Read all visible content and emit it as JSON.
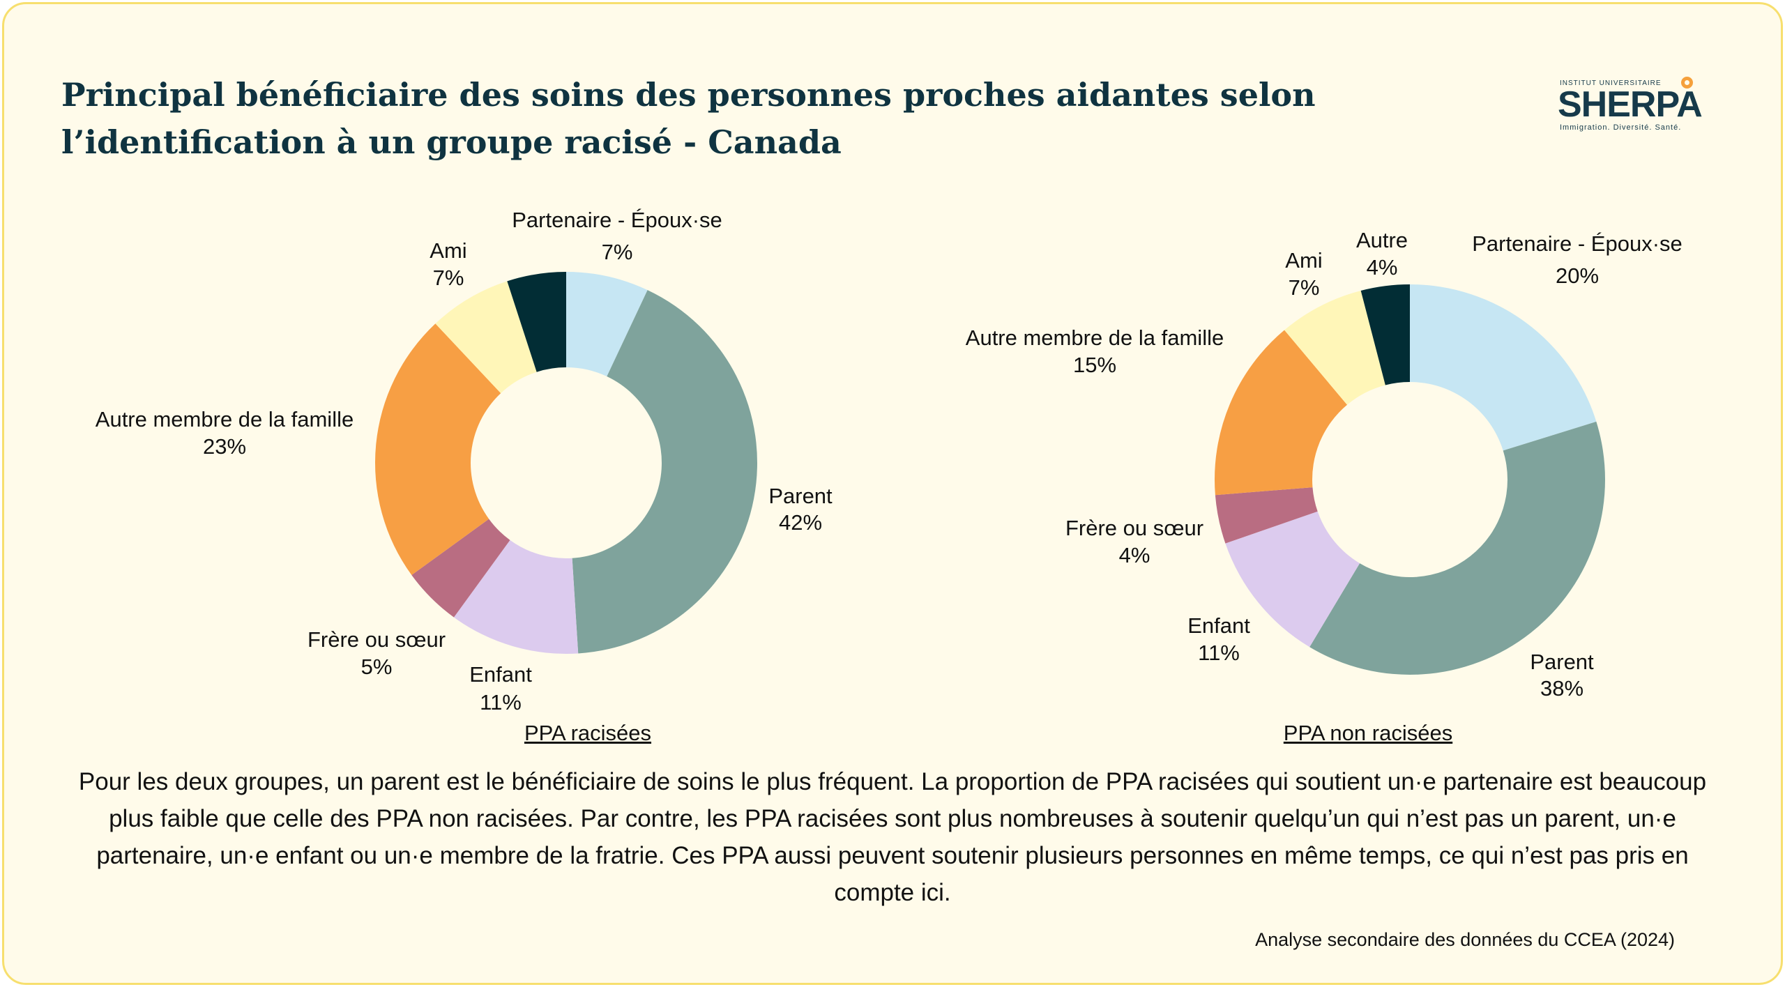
{
  "title": "Principal bénéficiaire des soins des personnes proches aidantes selon l’identification à un groupe racisé - Canada",
  "logo": {
    "small_text": "INSTITUT UNIVERSITAIRE",
    "brand": "SHERPA",
    "tagline": "Immigration. Diversité. Santé."
  },
  "colors": {
    "partenaire": "#c6e6f3",
    "parent": "#7fa39c",
    "enfant": "#dccbee",
    "frere": "#b96d82",
    "famille": "#f79f44",
    "ami": "#fff6b8",
    "autre": "#022d35"
  },
  "chart_data": [
    {
      "type": "pie",
      "caption": "PPA racisées",
      "slices": [
        {
          "label": "Partenaire - Époux·se",
          "value": 7,
          "value_text": "7%",
          "color": "#c6e6f3"
        },
        {
          "label": "Parent",
          "value": 42,
          "value_text": "42%",
          "color": "#7fa39c"
        },
        {
          "label": "Enfant",
          "value": 11,
          "value_text": "11%",
          "color": "#dccbee"
        },
        {
          "label": "Frère ou sœur",
          "value": 5,
          "value_text": "5%",
          "color": "#b96d82"
        },
        {
          "label": "Autre membre de la famille",
          "value": 23,
          "value_text": "23%",
          "color": "#f79f44"
        },
        {
          "label": "Ami",
          "value": 7,
          "value_text": "7%",
          "color": "#fff6b8"
        },
        {
          "label": "",
          "value": 5,
          "value_text": "",
          "color": "#022d35"
        }
      ]
    },
    {
      "type": "pie",
      "caption": "PPA non racisées",
      "slices": [
        {
          "label": "Partenaire - Époux·se",
          "value": 20,
          "value_text": "20%",
          "color": "#c6e6f3"
        },
        {
          "label": "Parent",
          "value": 38,
          "value_text": "38%",
          "color": "#7fa39c"
        },
        {
          "label": "Enfant",
          "value": 11,
          "value_text": "11%",
          "color": "#dccbee"
        },
        {
          "label": "Frère ou sœur",
          "value": 4,
          "value_text": "4%",
          "color": "#b96d82"
        },
        {
          "label": "Autre membre de la famille",
          "value": 15,
          "value_text": "15%",
          "color": "#f79f44"
        },
        {
          "label": "Ami",
          "value": 7,
          "value_text": "7%",
          "color": "#fff6b8"
        },
        {
          "label": "Autre",
          "value": 4,
          "value_text": "4%",
          "color": "#022d35"
        }
      ]
    }
  ],
  "note": "Pour les deux groupes, un parent est le bénéficiaire de soins le plus fréquent.  La proportion de PPA racisées qui soutient un·e partenaire est beaucoup plus faible que celle des PPA non racisées. Par contre, les PPA racisées sont plus nombreuses à soutenir quelqu’un qui n’est pas un parent, un·e partenaire, un·e enfant ou un·e membre de la fratrie. Ces PPA aussi peuvent soutenir plusieurs personnes en même temps, ce qui n’est pas pris en compte ici.",
  "source": "Analyse secondaire des données du CCEA (2024)"
}
